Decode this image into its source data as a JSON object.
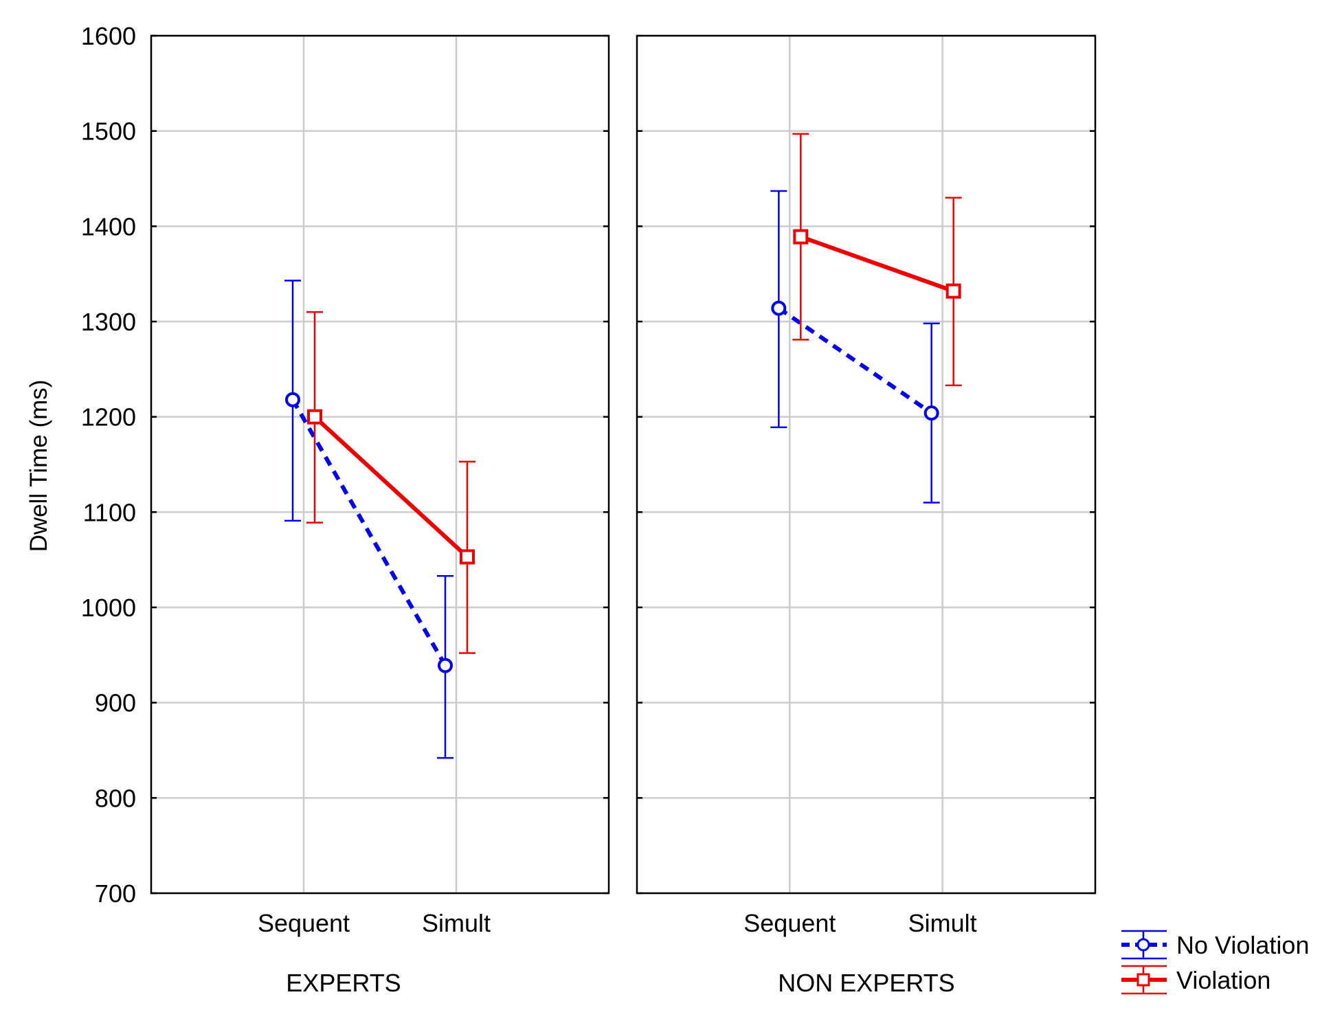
{
  "chart_data": {
    "type": "line",
    "ylabel": "Dwell Time (ms)",
    "ylim": [
      700,
      1600
    ],
    "yticks": [
      700,
      800,
      900,
      1000,
      1100,
      1200,
      1300,
      1400,
      1500,
      1600
    ],
    "categories": [
      "Sequent",
      "Simult"
    ],
    "grid": true,
    "legend_position": "bottom-right",
    "colors": {
      "no_violation": "#0000ee",
      "violation": "#ee0000",
      "grid": "#cccccc",
      "frame": "#000000"
    },
    "legend": [
      {
        "name": "No Violation",
        "marker": "circle",
        "line": "dashed"
      },
      {
        "name": "Violation",
        "marker": "square",
        "line": "solid"
      }
    ],
    "panels": [
      {
        "title": "EXPERTS",
        "series": [
          {
            "name": "No Violation",
            "values": [
              1218,
              939
            ],
            "lower": [
              1091,
              842
            ],
            "upper": [
              1343,
              1033
            ]
          },
          {
            "name": "Violation",
            "values": [
              1200,
              1053
            ],
            "lower": [
              1089,
              952
            ],
            "upper": [
              1310,
              1153
            ]
          }
        ]
      },
      {
        "title": "NON EXPERTS",
        "series": [
          {
            "name": "No Violation",
            "values": [
              1314,
              1204
            ],
            "lower": [
              1189,
              1110
            ],
            "upper": [
              1437,
              1298
            ]
          },
          {
            "name": "Violation",
            "values": [
              1389,
              1332
            ],
            "lower": [
              1281,
              1233
            ],
            "upper": [
              1497,
              1430
            ]
          }
        ]
      }
    ]
  }
}
